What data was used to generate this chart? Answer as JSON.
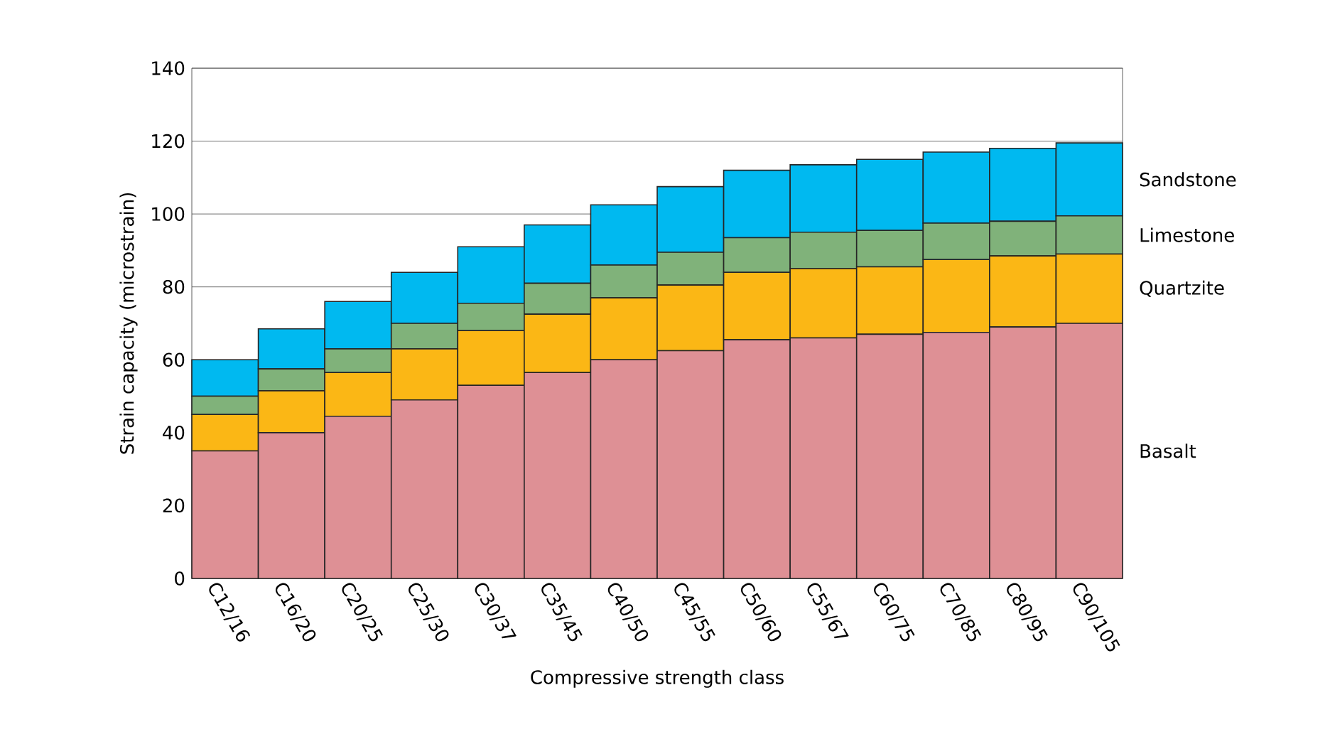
{
  "chart_data": {
    "type": "bar",
    "stacked": true,
    "xlabel": "Compressive strength class",
    "ylabel": "Strain capacity (microstrain)",
    "categories": [
      "C12/16",
      "C16/20",
      "C20/25",
      "C25/30",
      "C30/37",
      "C35/45",
      "C40/50",
      "C45/55",
      "C50/60",
      "C55/67",
      "C60/75",
      "C70/85",
      "C80/95",
      "C90/105"
    ],
    "series": [
      {
        "name": "Basalt",
        "color": "#de9095",
        "values": [
          35,
          40,
          44.5,
          49,
          53,
          56.5,
          60,
          62.5,
          65.5,
          66,
          67,
          67.5,
          69,
          70
        ]
      },
      {
        "name": "Quartzite",
        "color": "#fbb715",
        "values": [
          10,
          11.5,
          12,
          14,
          15,
          16,
          17,
          18,
          18.5,
          19,
          18.5,
          20,
          19.5,
          19
        ]
      },
      {
        "name": "Limestone",
        "color": "#80b27a",
        "values": [
          5,
          6,
          6.5,
          7,
          7.5,
          8.5,
          9,
          9,
          9.5,
          10,
          10,
          10,
          9.5,
          10.5
        ]
      },
      {
        "name": "Sandstone",
        "color": "#00b9f0",
        "values": [
          10,
          11,
          13,
          14,
          15.5,
          16,
          16.5,
          18,
          18.5,
          18.5,
          19.5,
          19.5,
          20,
          20
        ]
      }
    ],
    "ylim": [
      0,
      140
    ],
    "yticks": [
      0,
      20,
      40,
      60,
      80,
      100,
      120,
      140
    ],
    "grid": "y"
  }
}
